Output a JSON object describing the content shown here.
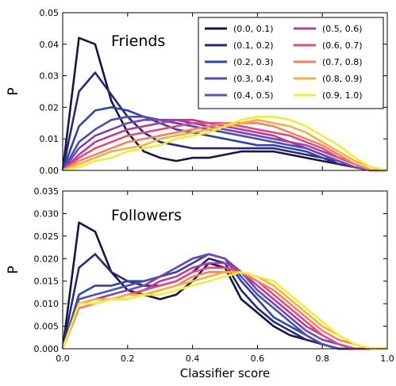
{
  "chart_data": [
    {
      "type": "line",
      "title": "Friends",
      "xlabel": "",
      "ylabel": "P",
      "xlim": [
        0.0,
        1.0
      ],
      "ylim": [
        0.0,
        0.05
      ],
      "xticks": [
        "0.0",
        "0.2",
        "0.4",
        "0.6",
        "0.8",
        "1.0"
      ],
      "yticks": [
        "0.00",
        "0.01",
        "0.02",
        "0.03",
        "0.04",
        "0.05"
      ],
      "legend": {
        "placement": "top-right",
        "columns": 2
      },
      "x": [
        0.0,
        0.05,
        0.1,
        0.15,
        0.2,
        0.25,
        0.3,
        0.35,
        0.4,
        0.45,
        0.5,
        0.55,
        0.6,
        0.65,
        0.7,
        0.75,
        0.8,
        0.85,
        0.9,
        0.95,
        1.0
      ],
      "series": [
        {
          "name": "(0.0, 0.1)",
          "color": "#1a1446",
          "values": [
            0.0,
            0.042,
            0.04,
            0.022,
            0.012,
            0.006,
            0.004,
            0.003,
            0.004,
            0.004,
            0.005,
            0.006,
            0.006,
            0.006,
            0.005,
            0.004,
            0.003,
            0.002,
            0.001,
            0.0,
            0.0
          ]
        },
        {
          "name": "(0.1, 0.2)",
          "color": "#252a73",
          "values": [
            0.0,
            0.025,
            0.031,
            0.024,
            0.017,
            0.012,
            0.009,
            0.008,
            0.007,
            0.007,
            0.007,
            0.007,
            0.007,
            0.007,
            0.006,
            0.005,
            0.004,
            0.002,
            0.001,
            0.0,
            0.0
          ]
        },
        {
          "name": "(0.2, 0.3)",
          "color": "#2f45a0",
          "values": [
            0.0,
            0.014,
            0.019,
            0.02,
            0.019,
            0.017,
            0.015,
            0.013,
            0.012,
            0.011,
            0.01,
            0.009,
            0.008,
            0.008,
            0.007,
            0.006,
            0.004,
            0.003,
            0.001,
            0.0,
            0.0
          ]
        },
        {
          "name": "(0.3, 0.4)",
          "color": "#4a4fb0",
          "values": [
            0.0,
            0.009,
            0.013,
            0.016,
            0.017,
            0.017,
            0.016,
            0.015,
            0.014,
            0.013,
            0.012,
            0.011,
            0.01,
            0.009,
            0.008,
            0.007,
            0.005,
            0.003,
            0.001,
            0.0,
            0.0
          ]
        },
        {
          "name": "(0.4, 0.5)",
          "color": "#7646aa",
          "values": [
            0.0,
            0.007,
            0.011,
            0.013,
            0.015,
            0.016,
            0.016,
            0.016,
            0.015,
            0.014,
            0.013,
            0.012,
            0.011,
            0.01,
            0.009,
            0.007,
            0.005,
            0.003,
            0.001,
            0.0,
            0.0
          ]
        },
        {
          "name": "(0.5, 0.6)",
          "color": "#b2409a",
          "values": [
            0.0,
            0.005,
            0.009,
            0.011,
            0.013,
            0.014,
            0.015,
            0.016,
            0.016,
            0.015,
            0.014,
            0.013,
            0.012,
            0.011,
            0.009,
            0.008,
            0.006,
            0.004,
            0.002,
            0.0,
            0.0
          ]
        },
        {
          "name": "(0.6, 0.7)",
          "color": "#dd4c82",
          "values": [
            0.0,
            0.004,
            0.007,
            0.009,
            0.011,
            0.012,
            0.013,
            0.014,
            0.015,
            0.015,
            0.015,
            0.014,
            0.013,
            0.012,
            0.011,
            0.009,
            0.007,
            0.004,
            0.002,
            0.0,
            0.0
          ]
        },
        {
          "name": "(0.7, 0.8)",
          "color": "#f18163",
          "values": [
            0.0,
            0.003,
            0.005,
            0.007,
            0.009,
            0.01,
            0.011,
            0.012,
            0.013,
            0.014,
            0.015,
            0.015,
            0.015,
            0.014,
            0.012,
            0.01,
            0.008,
            0.005,
            0.002,
            0.0,
            0.0
          ]
        },
        {
          "name": "(0.8, 0.9)",
          "color": "#f6b041",
          "values": [
            0.0,
            0.002,
            0.004,
            0.006,
            0.007,
            0.008,
            0.01,
            0.011,
            0.012,
            0.013,
            0.014,
            0.015,
            0.016,
            0.015,
            0.014,
            0.012,
            0.009,
            0.006,
            0.003,
            0.001,
            0.0
          ]
        },
        {
          "name": "(0.9, 1.0)",
          "color": "#f0ec3a",
          "values": [
            0.0,
            0.001,
            0.003,
            0.004,
            0.006,
            0.007,
            0.008,
            0.01,
            0.011,
            0.012,
            0.014,
            0.016,
            0.017,
            0.017,
            0.016,
            0.014,
            0.011,
            0.008,
            0.004,
            0.001,
            0.0
          ]
        }
      ]
    },
    {
      "type": "line",
      "title": "Followers",
      "xlabel": "Classifier score",
      "ylabel": "P",
      "xlim": [
        0.0,
        1.0
      ],
      "ylim": [
        0.0,
        0.035
      ],
      "xticks": [
        "0.0",
        "0.2",
        "0.4",
        "0.6",
        "0.8",
        "1.0"
      ],
      "yticks": [
        "0.000",
        "0.005",
        "0.010",
        "0.015",
        "0.020",
        "0.025",
        "0.030",
        "0.035"
      ],
      "x": [
        0.0,
        0.05,
        0.1,
        0.15,
        0.2,
        0.25,
        0.3,
        0.35,
        0.4,
        0.45,
        0.5,
        0.55,
        0.6,
        0.65,
        0.7,
        0.75,
        0.8,
        0.85,
        0.9,
        0.95,
        1.0
      ],
      "series": [
        {
          "name": "(0.0, 0.1)",
          "color": "#1a1446",
          "values": [
            0.0,
            0.028,
            0.026,
            0.017,
            0.013,
            0.012,
            0.011,
            0.012,
            0.015,
            0.019,
            0.018,
            0.011,
            0.008,
            0.005,
            0.003,
            0.002,
            0.001,
            0.0,
            0.0,
            0.0,
            0.0
          ]
        },
        {
          "name": "(0.1, 0.2)",
          "color": "#252a73",
          "values": [
            0.0,
            0.018,
            0.021,
            0.017,
            0.015,
            0.014,
            0.014,
            0.015,
            0.017,
            0.02,
            0.019,
            0.013,
            0.009,
            0.006,
            0.004,
            0.002,
            0.001,
            0.0,
            0.0,
            0.0,
            0.0
          ]
        },
        {
          "name": "(0.2, 0.3)",
          "color": "#2f45a0",
          "values": [
            0.0,
            0.012,
            0.014,
            0.014,
            0.015,
            0.015,
            0.016,
            0.017,
            0.019,
            0.021,
            0.02,
            0.015,
            0.011,
            0.007,
            0.005,
            0.003,
            0.001,
            0.0,
            0.0,
            0.0,
            0.0
          ]
        },
        {
          "name": "(0.3, 0.4)",
          "color": "#4a4fb0",
          "values": [
            0.0,
            0.011,
            0.012,
            0.013,
            0.014,
            0.015,
            0.016,
            0.018,
            0.02,
            0.021,
            0.02,
            0.016,
            0.012,
            0.009,
            0.006,
            0.003,
            0.001,
            0.0,
            0.0,
            0.0,
            0.0
          ]
        },
        {
          "name": "(0.4, 0.5)",
          "color": "#7646aa",
          "values": [
            0.0,
            0.01,
            0.011,
            0.012,
            0.013,
            0.014,
            0.016,
            0.018,
            0.02,
            0.021,
            0.02,
            0.017,
            0.013,
            0.01,
            0.007,
            0.004,
            0.002,
            0.001,
            0.0,
            0.0,
            0.0
          ]
        },
        {
          "name": "(0.5, 0.6)",
          "color": "#b2409a",
          "values": [
            0.0,
            0.01,
            0.011,
            0.011,
            0.012,
            0.013,
            0.015,
            0.016,
            0.018,
            0.019,
            0.019,
            0.017,
            0.014,
            0.011,
            0.008,
            0.005,
            0.003,
            0.001,
            0.0,
            0.0,
            0.0
          ]
        },
        {
          "name": "(0.6, 0.7)",
          "color": "#dd4c82",
          "values": [
            0.0,
            0.009,
            0.01,
            0.011,
            0.012,
            0.013,
            0.014,
            0.015,
            0.017,
            0.018,
            0.018,
            0.017,
            0.015,
            0.012,
            0.009,
            0.006,
            0.003,
            0.001,
            0.0,
            0.0,
            0.0
          ]
        },
        {
          "name": "(0.7, 0.8)",
          "color": "#f18163",
          "values": [
            0.0,
            0.009,
            0.01,
            0.011,
            0.011,
            0.012,
            0.013,
            0.014,
            0.016,
            0.017,
            0.017,
            0.017,
            0.015,
            0.013,
            0.01,
            0.007,
            0.004,
            0.002,
            0.001,
            0.0,
            0.0
          ]
        },
        {
          "name": "(0.8, 0.9)",
          "color": "#f6b041",
          "values": [
            0.0,
            0.01,
            0.011,
            0.011,
            0.012,
            0.012,
            0.013,
            0.014,
            0.015,
            0.016,
            0.017,
            0.017,
            0.016,
            0.014,
            0.011,
            0.008,
            0.005,
            0.003,
            0.001,
            0.0,
            0.0
          ]
        },
        {
          "name": "(0.9, 1.0)",
          "color": "#f0ec3a",
          "values": [
            0.0,
            0.01,
            0.01,
            0.011,
            0.011,
            0.012,
            0.012,
            0.013,
            0.014,
            0.015,
            0.016,
            0.017,
            0.016,
            0.015,
            0.012,
            0.009,
            0.006,
            0.003,
            0.001,
            0.0,
            0.0
          ]
        }
      ]
    }
  ]
}
